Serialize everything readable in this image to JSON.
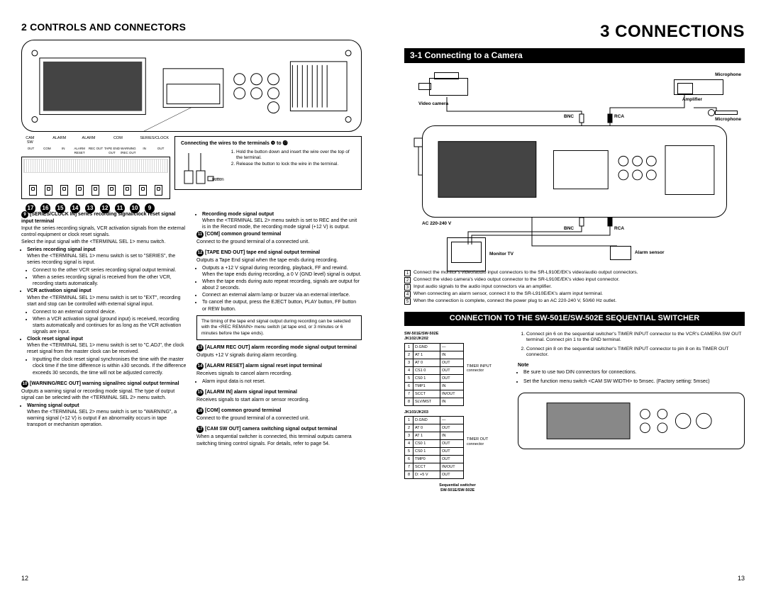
{
  "left": {
    "section_title": "2 CONTROLS AND CONNECTORS",
    "page_num": "12",
    "terminal_labels_top": [
      "CAM SW",
      "",
      "ALARM",
      "",
      "ALARM",
      "",
      "COM",
      "",
      "SERIES/CLOCK"
    ],
    "terminal_labels_bot": [
      "OUT",
      "COM",
      "IN",
      "ALARM RESET",
      "REC OUT",
      "TAPE END OUT",
      "WARNING /REC OUT",
      "IN",
      "OUT"
    ],
    "num_circles": [
      "17",
      "16",
      "15",
      "14",
      "13",
      "12",
      "11",
      "10",
      "9"
    ],
    "wire_box_title": "Connecting the wires to the terminals ❾ to ⓱",
    "wire_steps": [
      "Hold the button down and insert the wire over the top of the terminal.",
      "Release the button to lock the wire in the terminal."
    ],
    "wire_button_label": "button",
    "col1": {
      "e9_head": "[SERIES/CLOCK IN] series recording signal/clock reset signal input terminal",
      "e9_p": "Input the series recording signals, VCR activation signals from the external control equipment or clock reset signals.",
      "e9_p2": "Select the input signal with the <TERMINAL SEL 1> menu switch.",
      "e9_b1_head": "Series recording signal input",
      "e9_b1": "When the <TERMINAL SEL 1> menu switch is set to \"SERIES\", the series recording signal is input.",
      "e9_b1_l1": "Connect to the other VCR series recording signal output terminal.",
      "e9_b1_l2": "When a series recording signal is received from the other VCR, recording starts automatically.",
      "e9_b2_head": "VCR activation signal input",
      "e9_b2": "When the <TERMINAL SEL 1> menu switch is set to \"EXT\", recording start and stop can be controlled with external signal input.",
      "e9_b2_l1": "Connect to an external control device.",
      "e9_b2_l2": "When a VCR activation signal (ground input) is received, recording starts automatically and continues for as long as the VCR activation signals are input.",
      "e9_b3_head": "Clock reset signal input",
      "e9_b3": "When the <TERMINAL SEL 1> menu switch is set to \"C.ADJ\", the clock reset signal from the master clock can be received.",
      "e9_b3_l1": "Inputting the clock reset signal synchronises the time with the master clock time if the time difference is within ±30 seconds. If the difference exceeds 30 seconds, the time will not be adjusted correctly.",
      "e10_head": "[WARNING/REC OUT] warning signal/rec signal output terminal",
      "e10_p": "Outputs a warning signal or recording mode signal. The type of output signal can be selected with the <TERMINAL SEL 2> menu switch.",
      "e10_b1_head": "Warning signal output",
      "e10_b1": "When the <TERMINAL SEL 2> menu switch is set to \"WARNING\", a warning signal (+12 V) is output if an abnormality occurs in tape transport or mechanism operation."
    },
    "col2": {
      "rm_head": "Recording mode signal output",
      "rm_p": "When the <TERMINAL SEL 2> menu switch is set to REC and the unit is in the Record mode, the recording mode signal (+12 V) is output.",
      "e11_head": "[COM] common ground terminal",
      "e11_p": "Connect to the ground terminal of a connected unit.",
      "e12_head": "[TAPE END OUT] tape end signal output terminal",
      "e12_p": "Outputs a Tape End signal when the tape ends during recording.",
      "e12_l1": "Outputs a +12 V signal during recording, playback, FF and rewind. When the tape ends during recording, a 0 V (GND level) signal is output.",
      "e12_l2": "When the tape ends during auto repeat recording, signals are output for about 2 seconds.",
      "e12_l3": "Connect an external alarm lamp or buzzer via an external interface.",
      "e12_l4": "To cancel the output, press the EJECT button, PLAY button, FF button or REW button.",
      "note": "The timing of the tape end signal output during recording can be selected with the <REC REMAIN> menu switch (at tape end, or 3 minutes or 6 minutes before the tape ends).",
      "e13_head": "[ALARM REC OUT] alarm recording mode signal output terminal",
      "e13_p": "Outputs +12 V signals during alarm recording.",
      "e14_head": "[ALARM RESET] alarm signal reset input terminal",
      "e14_p": "Receives signals to cancel alarm recording.",
      "e14_l1": "Alarm input data is not reset.",
      "e15_head": "[ALARM IN] alarm signal input terminal",
      "e15_p": "Receives signals to start alarm or sensor recording.",
      "e16_head": "[COM] common ground terminal",
      "e16_p": "Connect to the ground terminal of a connected unit.",
      "e17_head": "[CAM SW OUT] camera switching signal output terminal",
      "e17_p": "When a sequential switcher is connected, this terminal outputs camera switching timing control signals. For details, refer to page 54."
    }
  },
  "right": {
    "chapter": "3 CONNECTIONS",
    "sub1": "3-1  Connecting to a Camera",
    "page_num": "13",
    "labels": {
      "camera": "Video camera",
      "mic": "Microphone",
      "amp": "Amplifier",
      "mic2": "Microphone",
      "bnc": "BNC",
      "rca": "RCA",
      "ac": "AC 220-240 V",
      "monitor": "Monitor TV",
      "sensor": "Alarm sensor"
    },
    "steps": [
      "Connect the monitor's video/audio input connectors to the SR-L910E/EK's video/audio output connectors.",
      "Connect the video camera's video output connector to the SR-L910E/EK's video input connector.",
      "Input audio signals to the audio input connectors via an amplifier.",
      "When connecting an alarm sensor, connect it to the SR-L910E/EK's alarm input terminal.",
      "When the connection is complete, connect the power plug to an AC 220-240 V, 50/60 Hz outlet."
    ],
    "sub2": "CONNECTION TO THE SW-501E/SW-502E SEQUENTIAL SWITCHER",
    "pin_title1": "SW-501E/SW-502E\nJK102/JK202",
    "pin1": [
      [
        "1",
        "D.GND",
        "—"
      ],
      [
        "2",
        "AT 1",
        "IN"
      ],
      [
        "3",
        "AT 0",
        "OUT"
      ],
      [
        "4",
        "CS1 0",
        "OUT"
      ],
      [
        "5",
        "CS0 1",
        "OUT"
      ],
      [
        "6",
        "TMP1",
        "IN"
      ],
      [
        "7",
        "SCCT",
        "IN/OUT"
      ],
      [
        "8",
        "SLV/MST",
        "IN"
      ]
    ],
    "pin_side1": "TIMER INPUT connector",
    "pin_title2": "JK103/JK203",
    "pin2": [
      [
        "1",
        "D.GND",
        "—"
      ],
      [
        "2",
        "AT 0",
        "OUT"
      ],
      [
        "3",
        "AT 1",
        "IN"
      ],
      [
        "4",
        "CS0 1",
        "OUT"
      ],
      [
        "5",
        "CS0 1",
        "OUT"
      ],
      [
        "6",
        "TMP0",
        "OUT"
      ],
      [
        "7",
        "SCCT",
        "IN/OUT"
      ],
      [
        "8",
        "D: +5 V",
        "OUT"
      ]
    ],
    "pin_side2": "TIMER OUT connector",
    "seq_label": "Sequential switcher\nSW-501E/SW-502E",
    "right_steps": [
      "Connect pin 6 on the sequential switcher's TIMER INPUT connector to the VCR's CAMERA SW OUT terminal. Connect pin 1 to the GND terminal.",
      "Connect pin 8 on the sequential switcher's TIMER INPUT connector to pin 8 on its TIMER OUT connector."
    ],
    "note_head": "Note",
    "note_items": [
      "Be sure to use two DIN connectors for connections.",
      "Set the function menu switch <CAM SW WIDTH> to 5msec. (Factory setting: 5msec)"
    ]
  }
}
